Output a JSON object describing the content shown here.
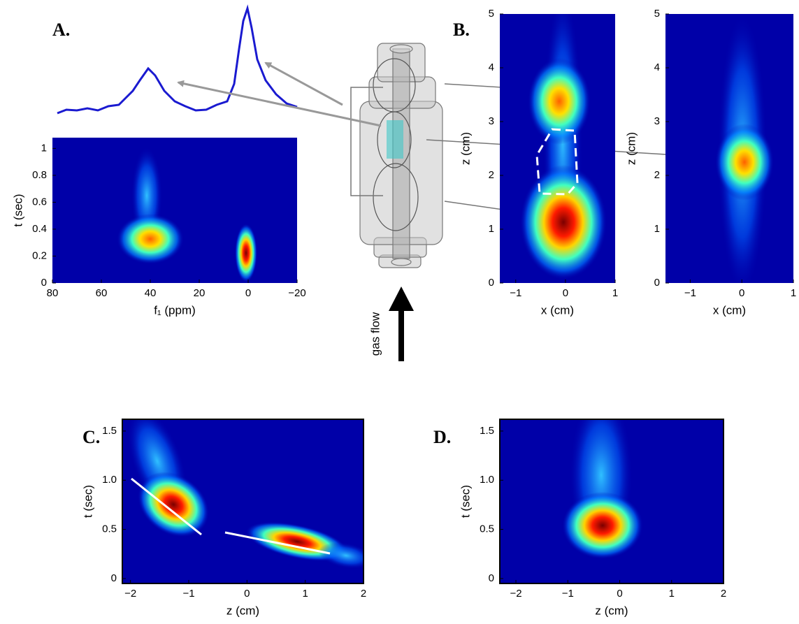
{
  "chart_data": [
    {
      "type": "heatmap",
      "panel_label": "A.",
      "xlabel": "f₁ (ppm)",
      "ylabel": "t (sec)",
      "xlim": [
        80,
        -20
      ],
      "xticks": [
        80,
        60,
        40,
        20,
        0,
        {
          "value": -20,
          "label": "−20"
        }
      ],
      "ylim": [
        0,
        1.08
      ],
      "yticks": [
        0,
        0.2,
        0.4,
        0.6,
        0.8,
        1
      ],
      "frame": false
    },
    {
      "type": "heatmap",
      "panel_label": "B.",
      "xlabel": "x (cm)",
      "ylabel": "z (cm)",
      "xlim": [
        -1.32,
        1
      ],
      "xticks": [
        {
          "value": -1,
          "label": "−1"
        },
        0,
        1
      ],
      "ylim": [
        0,
        5
      ],
      "yticks": [
        0,
        1,
        2,
        3,
        4,
        5
      ],
      "frame": false
    },
    {
      "type": "heatmap",
      "xlabel": "x (cm)",
      "ylabel": "z (cm)",
      "xlim": [
        -1.48,
        1
      ],
      "xticks": [
        {
          "value": -1,
          "label": "−1"
        },
        0,
        1
      ],
      "ylim": [
        0,
        5
      ],
      "yticks": [
        0,
        1,
        2,
        3,
        4,
        5
      ],
      "frame": false
    },
    {
      "type": "heatmap",
      "panel_label": "C.",
      "xlabel": "z (cm)",
      "ylabel": "t (sec)",
      "xlim": [
        -2.14,
        2
      ],
      "xticks": [
        {
          "value": -2,
          "label": "−2"
        },
        {
          "value": -1,
          "label": "−1"
        },
        0,
        1,
        2
      ],
      "ylim": [
        -0.05,
        1.62
      ],
      "yticks": [
        0,
        0.5,
        {
          "value": 1,
          "label": "1.0"
        },
        1.5
      ],
      "frame": true
    },
    {
      "type": "heatmap",
      "panel_label": "D.",
      "xlabel": "z (cm)",
      "ylabel": "t (sec)",
      "xlim": [
        -2.31,
        2
      ],
      "xticks": [
        {
          "value": -2,
          "label": "−2"
        },
        {
          "value": -1,
          "label": "−1"
        },
        0,
        1,
        2
      ],
      "ylim": [
        -0.05,
        1.62
      ],
      "yticks": [
        0,
        0.5,
        {
          "value": 1,
          "label": "1.0"
        },
        1.5
      ],
      "frame": true
    }
  ],
  "annotations": {
    "gas_flow": "gas flow"
  }
}
